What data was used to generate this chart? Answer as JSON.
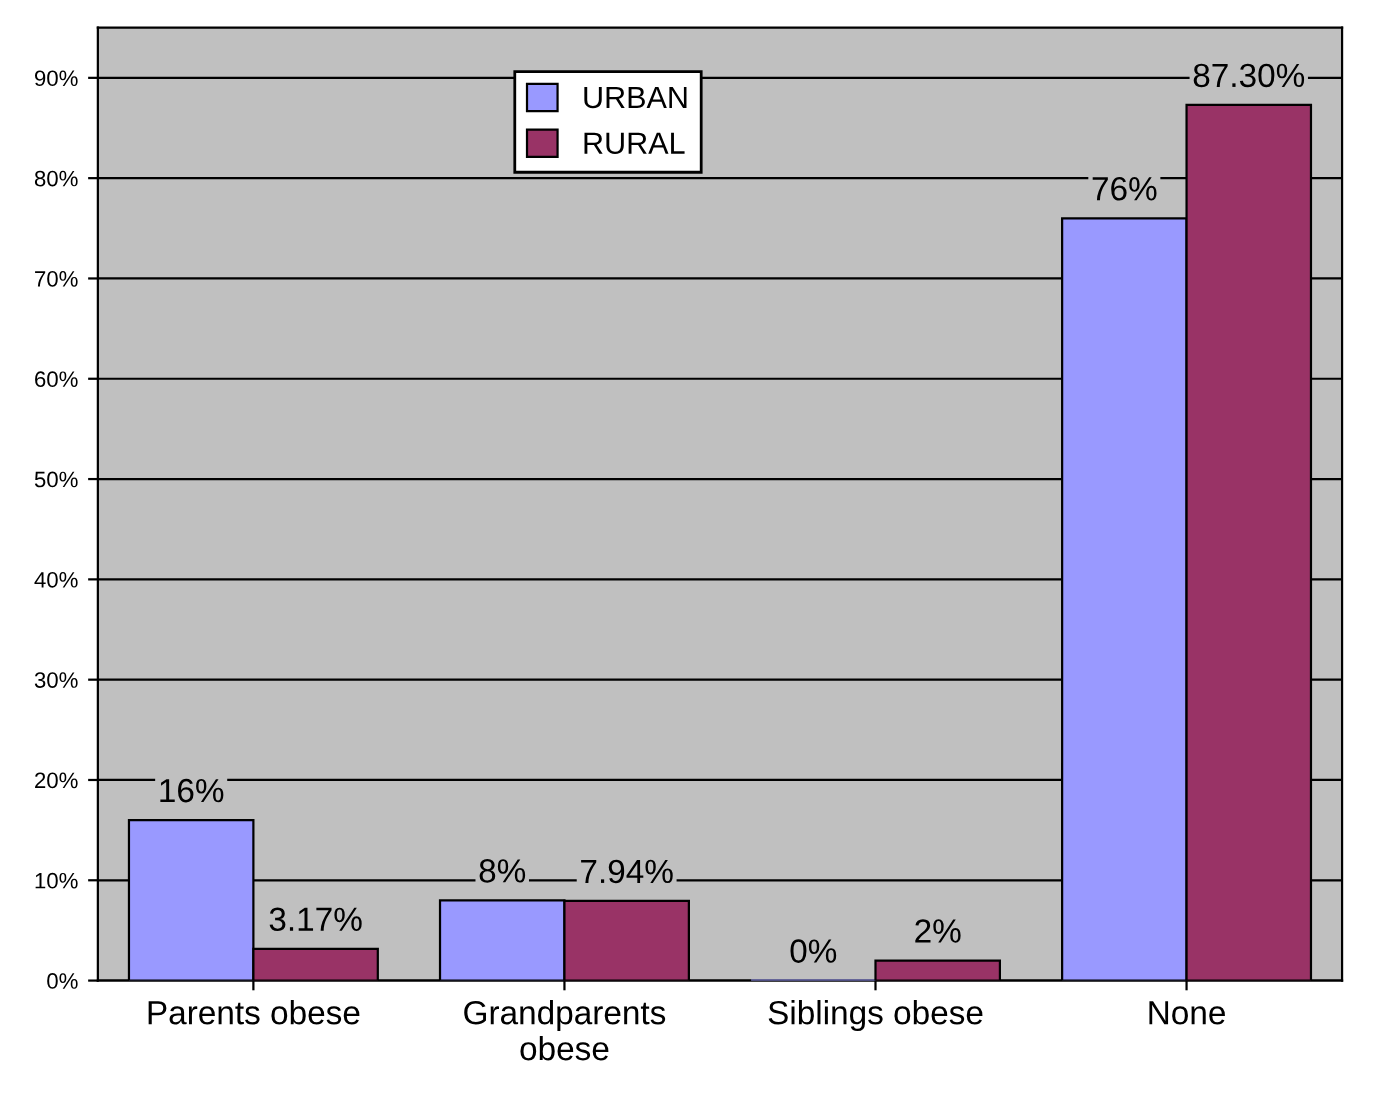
{
  "chart_data": {
    "type": "bar",
    "categories": [
      "Parents obese",
      "Grandparents obese",
      "Siblings obese",
      "None"
    ],
    "series": [
      {
        "name": "URBAN",
        "color": "#9999ff",
        "values": [
          16,
          8,
          0,
          76
        ],
        "value_labels": [
          "16%",
          "8%",
          "0%",
          "76%"
        ]
      },
      {
        "name": "RURAL",
        "color": "#993366",
        "values": [
          3.17,
          7.94,
          2,
          87.3
        ],
        "value_labels": [
          "3.17%",
          "7.94%",
          "2%",
          "87.30%"
        ]
      }
    ],
    "ylim": [
      0,
      95
    ],
    "yticks": [
      {
        "value": 0,
        "label": "0%"
      },
      {
        "value": 10,
        "label": "10%"
      },
      {
        "value": 20,
        "label": "20%"
      },
      {
        "value": 30,
        "label": "30%"
      },
      {
        "value": 40,
        "label": "40%"
      },
      {
        "value": 50,
        "label": "50%"
      },
      {
        "value": 60,
        "label": "60%"
      },
      {
        "value": 70,
        "label": "70%"
      },
      {
        "value": 80,
        "label": "80%"
      },
      {
        "value": 90,
        "label": "90%"
      }
    ],
    "grid": "y",
    "legend": "top"
  }
}
